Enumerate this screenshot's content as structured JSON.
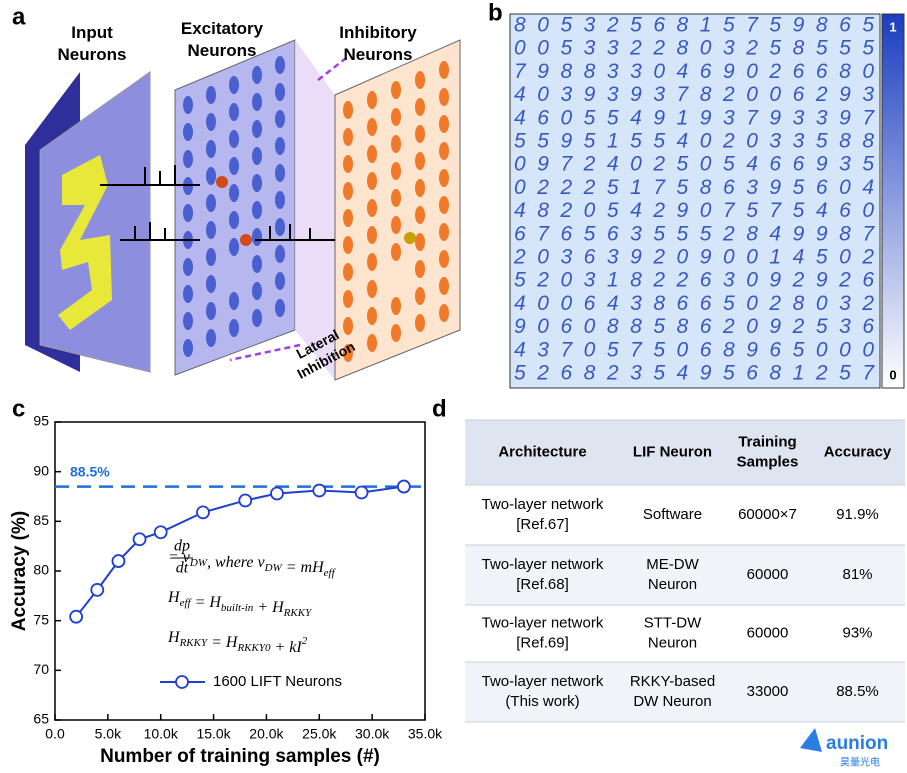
{
  "panel_labels": [
    "a",
    "b",
    "c",
    "d"
  ],
  "diagram": {
    "input_label": [
      "Input",
      "Neurons"
    ],
    "excitatory_label": [
      "Excitatory",
      "Neurons"
    ],
    "inhibitory_label": [
      "Inhibitory",
      "Neurons"
    ],
    "lateral_label": [
      "Lateral",
      "Inhibition"
    ]
  },
  "digit_grid": {
    "rows": [
      "8053256815759865",
      "0053322803258555",
      "7988330469026680",
      "4039393782006293",
      "4605549193793397",
      "5595155402033588",
      "0972402505466935",
      "0222517586395604",
      "4820542907575460",
      "6765635552849987",
      "2036392090014502",
      "5203182263092926",
      "4006438665028032",
      "9060885862092536",
      "4370575068965000",
      "5268235495681257"
    ],
    "colorbar_max": "1",
    "colorbar_min": "0"
  },
  "chart_data": {
    "type": "line",
    "x": [
      2000,
      4000,
      6000,
      8000,
      10000,
      14000,
      18000,
      21000,
      25000,
      29000,
      33000
    ],
    "series": [
      {
        "name": "1600 LIFT Neurons",
        "color": "#1f3fd0",
        "values": [
          75.4,
          78.1,
          81.0,
          83.2,
          83.9,
          85.9,
          87.1,
          87.8,
          88.1,
          87.9,
          88.5
        ]
      }
    ],
    "xlim": [
      0,
      35000
    ],
    "xticks": [
      {
        "value": 0,
        "label": "0.0"
      },
      {
        "value": 5000,
        "label": "5.0k"
      },
      {
        "value": 10000,
        "label": "10.0k"
      },
      {
        "value": 15000,
        "label": "15.0k"
      },
      {
        "value": 20000,
        "label": "20.0k"
      },
      {
        "value": 25000,
        "label": "25.0k"
      },
      {
        "value": 30000,
        "label": "30.0k"
      },
      {
        "value": 35000,
        "label": "35.0k"
      }
    ],
    "ylim": [
      65,
      95
    ],
    "yticks": [
      65,
      70,
      75,
      80,
      85,
      90,
      95
    ],
    "xlabel": "Number of training samples (#)",
    "ylabel": "Accuracy (%)",
    "reference": {
      "value": 88.5,
      "label": "88.5%",
      "color": "#1f6fd8"
    },
    "equations": [
      [
        {
          "frac": [
            "dp",
            "dt"
          ]
        },
        {
          "text": " = v",
          "sub": "DW"
        },
        {
          "text": ", where  v",
          "sub": "DW"
        },
        {
          "text": " = mH",
          "sub": "eff"
        }
      ],
      [
        {
          "text": "H",
          "sub": "eff"
        },
        {
          "text": " = H",
          "sub": "built-in"
        },
        {
          "text": " + H",
          "sub": "RKKY"
        }
      ],
      [
        {
          "text": "H",
          "sub": "RKKY"
        },
        {
          "text": " = H",
          "sub": "RKKY0"
        },
        {
          "text": " + kI"
        },
        {
          "sup": "2"
        }
      ]
    ]
  },
  "table": {
    "header": [
      [
        "Architecture"
      ],
      [
        "LIF Neuron"
      ],
      [
        "Training",
        "Samples"
      ],
      [
        "Accuracy"
      ]
    ],
    "rows": [
      [
        [
          "Two-layer network",
          "[Ref.67]"
        ],
        [
          "Software"
        ],
        [
          "60000×7"
        ],
        [
          "91.9%"
        ]
      ],
      [
        [
          "Two-layer network",
          "[Ref.68]"
        ],
        [
          "ME-DW",
          "Neuron"
        ],
        [
          "60000"
        ],
        [
          "81%"
        ]
      ],
      [
        [
          "Two-layer network",
          "[Ref.69]"
        ],
        [
          "STT-DW",
          "Neuron"
        ],
        [
          "60000"
        ],
        [
          "93%"
        ]
      ],
      [
        [
          "Two-layer network",
          "(This work)"
        ],
        [
          "RKKY-based",
          "DW Neuron"
        ],
        [
          "33000"
        ],
        [
          "88.5%"
        ]
      ]
    ]
  },
  "watermark": {
    "logo": "aunion",
    "subtitle": "昊量光电"
  }
}
